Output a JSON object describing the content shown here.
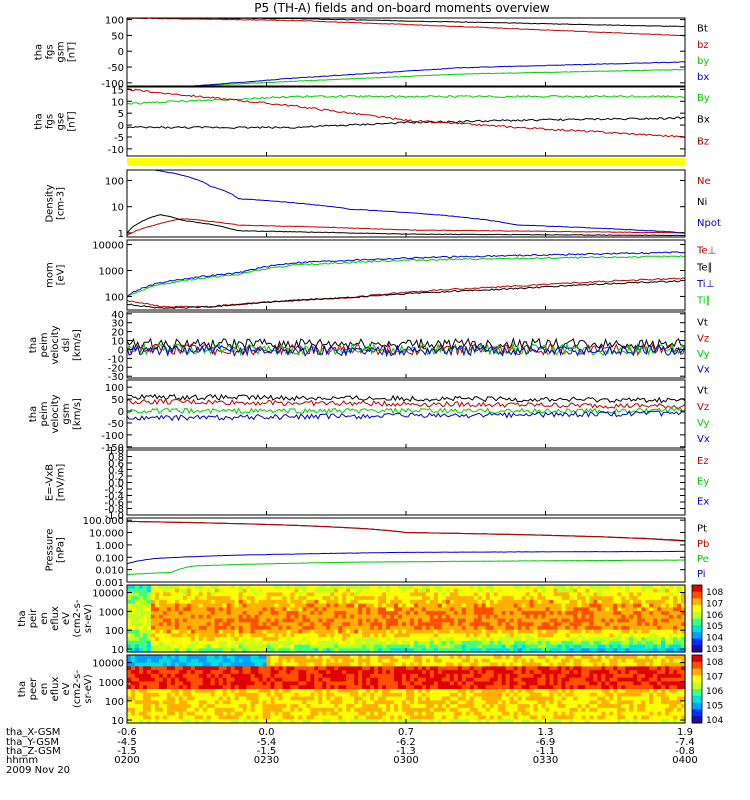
{
  "title": "P5 (TH-A) fields and on-board moments overview",
  "colors": {
    "black": "#000000",
    "red": "#c00000",
    "green": "#00cc00",
    "blue": "#0000cc",
    "yellow": "#ffff00"
  },
  "chart_data": [
    {
      "type": "line",
      "ylabel": [
        "tha",
        "fgs",
        "gsm",
        "[nT]"
      ],
      "yticks": [
        "100",
        "50",
        "0",
        "-50",
        "-100"
      ],
      "ylim": [
        -110,
        105
      ],
      "series": [
        {
          "name": "Bt",
          "color": "black",
          "points": [
            [
              0,
              105
            ],
            [
              0.3,
              103
            ],
            [
              1,
              78
            ]
          ]
        },
        {
          "name": "bz",
          "color": "red",
          "points": [
            [
              0,
              105
            ],
            [
              0.3,
              97
            ],
            [
              0.6,
              78
            ],
            [
              1,
              49
            ]
          ]
        },
        {
          "name": "by",
          "color": "green",
          "points": [
            [
              0.12,
              -110
            ],
            [
              0.3,
              -95
            ],
            [
              0.6,
              -72
            ],
            [
              1,
              -58
            ]
          ]
        },
        {
          "name": "bx",
          "color": "blue",
          "points": [
            [
              0.12,
              -110
            ],
            [
              0.3,
              -85
            ],
            [
              0.6,
              -52
            ],
            [
              1,
              -34
            ]
          ]
        }
      ]
    },
    {
      "type": "line",
      "ylabel": [
        "tha",
        "fgs",
        "gse",
        "[nT]"
      ],
      "yticks": [
        "15",
        "10",
        "5",
        "0",
        "-5",
        "-10"
      ],
      "ylim": [
        -13,
        16
      ],
      "series": [
        {
          "name": "By",
          "color": "green",
          "points": [
            [
              0,
              9
            ],
            [
              0.3,
              12
            ],
            [
              0.6,
              12
            ],
            [
              1,
              12
            ]
          ]
        },
        {
          "name": "Bx",
          "color": "black",
          "points": [
            [
              0,
              -1
            ],
            [
              0.3,
              -1
            ],
            [
              0.5,
              1
            ],
            [
              0.7,
              2
            ],
            [
              1,
              3
            ]
          ]
        },
        {
          "name": "Bz",
          "color": "red",
          "points": [
            [
              0,
              15
            ],
            [
              0.3,
              8
            ],
            [
              0.5,
              2
            ],
            [
              0.7,
              -1
            ],
            [
              1,
              -5
            ]
          ]
        }
      ]
    },
    {
      "type": "line",
      "ylabel": [
        "Density",
        "[cm-3]"
      ],
      "yticks": [
        "100",
        "10",
        "1"
      ],
      "ylim": [
        0.7,
        250
      ],
      "scale": "log",
      "series": [
        {
          "name": "Ne",
          "color": "red",
          "points": [
            [
              0,
              0.8
            ],
            [
              0.05,
              2
            ],
            [
              0.1,
              3.5
            ],
            [
              0.2,
              2
            ],
            [
              0.5,
              1.3
            ],
            [
              1,
              1
            ]
          ]
        },
        {
          "name": "Ni",
          "color": "black",
          "points": [
            [
              0,
              1
            ],
            [
              0.06,
              5
            ],
            [
              0.1,
              3
            ],
            [
              0.2,
              1.2
            ],
            [
              0.5,
              0.9
            ],
            [
              1,
              0.8
            ]
          ]
        },
        {
          "name": "Npot",
          "color": "blue",
          "points": [
            [
              0.05,
              250
            ],
            [
              0.15,
              60
            ],
            [
              0.2,
              20
            ],
            [
              0.4,
              8
            ],
            [
              0.7,
              2
            ],
            [
              1,
              1
            ]
          ]
        }
      ]
    },
    {
      "type": "line",
      "ylabel": [
        "mom",
        "[eV]"
      ],
      "yticks": [
        "10000",
        "1000",
        "100"
      ],
      "ylim": [
        30,
        15000
      ],
      "scale": "log",
      "series": [
        {
          "name": "Te⊥",
          "color": "red",
          "points": [
            [
              0,
              70
            ],
            [
              0.06,
              40
            ],
            [
              0.15,
              40
            ],
            [
              0.4,
              90
            ],
            [
              0.7,
              250
            ],
            [
              1,
              500
            ]
          ]
        },
        {
          "name": "Te∥",
          "color": "black",
          "points": [
            [
              0,
              50
            ],
            [
              0.06,
              35
            ],
            [
              0.15,
              40
            ],
            [
              0.4,
              90
            ],
            [
              0.7,
              200
            ],
            [
              1,
              400
            ]
          ]
        },
        {
          "name": "Ti⊥",
          "color": "blue",
          "points": [
            [
              0,
              100
            ],
            [
              0.05,
              300
            ],
            [
              0.2,
              800
            ],
            [
              0.3,
              2000
            ],
            [
              0.5,
              3000
            ],
            [
              1,
              5000
            ]
          ]
        },
        {
          "name": "Ti∥",
          "color": "green",
          "points": [
            [
              0,
              90
            ],
            [
              0.05,
              250
            ],
            [
              0.2,
              700
            ],
            [
              0.3,
              1600
            ],
            [
              0.5,
              2500
            ],
            [
              1,
              3500
            ]
          ]
        }
      ]
    },
    {
      "type": "line",
      "ylabel": [
        "tha",
        "peim",
        "velocity",
        "dsl",
        "[km/s]"
      ],
      "yticks": [
        "40",
        "30",
        "20",
        "10",
        "0",
        "-10",
        "-20",
        "-30"
      ],
      "ylim": [
        -32,
        42
      ],
      "series": [
        {
          "name": "Vt",
          "color": "black",
          "points": [
            [
              0,
              6
            ],
            [
              1,
              6
            ]
          ]
        },
        {
          "name": "Vz",
          "color": "red",
          "points": [
            [
              0,
              0
            ],
            [
              1,
              0
            ]
          ]
        },
        {
          "name": "Vy",
          "color": "green",
          "points": [
            [
              0,
              0
            ],
            [
              1,
              0
            ]
          ]
        },
        {
          "name": "Vx",
          "color": "blue",
          "points": [
            [
              0,
              -1
            ],
            [
              1,
              -1
            ]
          ]
        }
      ]
    },
    {
      "type": "line",
      "ylabel": [
        "tha",
        "peim",
        "velocity",
        "gsm",
        "[km/s]"
      ],
      "yticks": [
        "100",
        "50",
        "0",
        "-50",
        "-100",
        "-150"
      ],
      "ylim": [
        -155,
        130
      ],
      "series": [
        {
          "name": "Vt",
          "color": "black",
          "points": [
            [
              0,
              60
            ],
            [
              1,
              45
            ]
          ]
        },
        {
          "name": "Vz",
          "color": "red",
          "points": [
            [
              0,
              40
            ],
            [
              1,
              20
            ]
          ]
        },
        {
          "name": "Vy",
          "color": "green",
          "points": [
            [
              0,
              0
            ],
            [
              1,
              0
            ]
          ]
        },
        {
          "name": "Vx",
          "color": "blue",
          "points": [
            [
              0,
              -30
            ],
            [
              1,
              -10
            ]
          ]
        }
      ]
    },
    {
      "type": "line",
      "ylabel": [
        "E=-VxB",
        "[mV/m]"
      ],
      "yticks": [
        "1.0",
        "0.8",
        "0.6",
        "0.4",
        "0.2",
        "0.0",
        "-0.2",
        "-0.4",
        "-0.6",
        "-0.8",
        "-1.0"
      ],
      "ylim": [
        -1,
        1
      ],
      "series": [
        {
          "name": "Ez",
          "color": "red",
          "points": []
        },
        {
          "name": "Ey",
          "color": "green",
          "points": []
        },
        {
          "name": "Ex",
          "color": "blue",
          "points": []
        }
      ]
    },
    {
      "type": "line",
      "ylabel": [
        "Pressure",
        "[nPa]"
      ],
      "yticks": [
        "100.000",
        "10.000",
        "1.000",
        "0.100",
        "0.010",
        "0.001"
      ],
      "ylim": [
        0.001,
        150
      ],
      "scale": "log",
      "series": [
        {
          "name": "Pt",
          "color": "black",
          "points": [
            [
              0,
              80
            ],
            [
              0.5,
              10
            ],
            [
              1,
              2.2
            ]
          ]
        },
        {
          "name": "Pb",
          "color": "red",
          "points": [
            [
              0,
              80
            ],
            [
              0.5,
              10
            ],
            [
              1,
              2
            ]
          ]
        },
        {
          "name": "Pe",
          "color": "green",
          "points": [
            [
              0,
              0.004
            ],
            [
              0.08,
              0.006
            ],
            [
              0.12,
              0.02
            ],
            [
              0.4,
              0.04
            ],
            [
              1,
              0.06
            ]
          ]
        },
        {
          "name": "Pi",
          "color": "blue",
          "points": [
            [
              0,
              0.03
            ],
            [
              0.05,
              0.08
            ],
            [
              0.2,
              0.15
            ],
            [
              0.5,
              0.25
            ],
            [
              1,
              0.3
            ]
          ]
        }
      ]
    },
    {
      "type": "heatmap",
      "ylabel": [
        "tha",
        "peir",
        "en",
        "eflux",
        "eV",
        "(cm^2-s-",
        "sr-eV)"
      ],
      "yticks": [
        "10000",
        "1000",
        "100",
        "10"
      ],
      "ylim": [
        7,
        25000
      ],
      "colorbar": [
        "10^8",
        "10^7",
        "10^6",
        "10^5",
        "10^4",
        "10^3"
      ],
      "clim": [
        3,
        8
      ]
    },
    {
      "type": "heatmap",
      "ylabel": [
        "tha",
        "peer",
        "en",
        "eflux",
        "eV",
        "(cm^2-s-",
        "sr-eV)"
      ],
      "yticks": [
        "10000",
        "1000",
        "100",
        "10"
      ],
      "ylim": [
        7,
        25000
      ],
      "colorbar": [
        "10^8",
        "10^7",
        "10^6",
        "10^5",
        "10^4"
      ],
      "clim": [
        3.5,
        8
      ]
    }
  ],
  "xaxis": {
    "row_labels": [
      "tha_X-GSM",
      "tha_Y-GSM",
      "tha_Z-GSM",
      "hhmm",
      "2009 Nov 20"
    ],
    "columns": [
      [
        "-0.6",
        "-4.5",
        "-1.5",
        "0200"
      ],
      [
        "0.0",
        "-5.4",
        "-1.5",
        "0230"
      ],
      [
        "0.7",
        "-6.2",
        "-1.3",
        "0300"
      ],
      [
        "1.3",
        "-6.9",
        "-1.1",
        "0330"
      ],
      [
        "1.9",
        "-7.4",
        "-0.8",
        "0400"
      ]
    ]
  }
}
